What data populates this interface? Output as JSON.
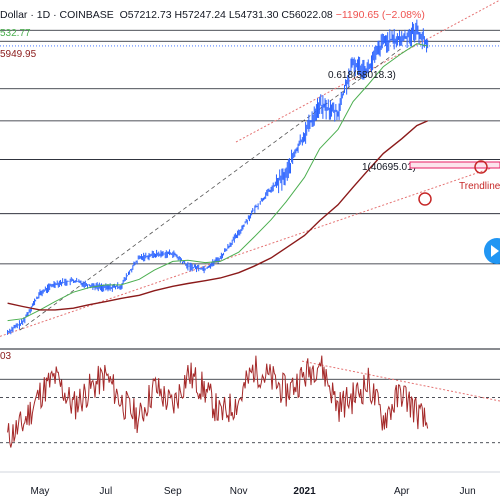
{
  "header": {
    "title": "Dollar · 1D · COINBASE",
    "open": "O57212.73",
    "high": "H57247.24",
    "low": "L54731.30",
    "close": "C56022.08",
    "change": "−1190.65 (−2.08%)"
  },
  "ma_labels": {
    "fast": "532.77",
    "slow": "5949.95"
  },
  "rsi_label": "03",
  "annotations": {
    "fib_618": "0.618(58018.3)",
    "fib_1": "1(40695.01)",
    "trendline": "Trendline"
  },
  "colors": {
    "up": "#2962ff",
    "ma_fast": "#4caf50",
    "ma_slow": "#8b1a1a",
    "rsi": "#a52a2a",
    "trend": "#e57373",
    "fib": "#131722"
  },
  "chart_data": [
    {
      "type": "line",
      "title": "",
      "x": [
        "2020-04-01",
        "2020-04-15",
        "2020-05-01",
        "2020-05-15",
        "2020-06-01",
        "2020-06-15",
        "2020-07-01",
        "2020-07-15",
        "2020-08-01",
        "2020-08-15",
        "2020-09-01",
        "2020-09-15",
        "2020-10-01",
        "2020-10-15",
        "2020-11-01",
        "2020-11-15",
        "2020-12-01",
        "2020-12-15",
        "2021-01-01",
        "2021-01-15",
        "2021-02-01",
        "2021-02-15",
        "2021-03-01",
        "2021-03-15",
        "2021-04-01",
        "2021-04-15",
        "2021-04-25"
      ],
      "series": [
        {
          "values": [
            6600,
            7100,
            8800,
            9500,
            9700,
            9400,
            9200,
            9300,
            11500,
            11800,
            11900,
            10800,
            10600,
            11500,
            13800,
            16400,
            19200,
            21500,
            29000,
            36000,
            34000,
            49000,
            47000,
            58000,
            59000,
            63000,
            56022
          ]
        },
        {
          "values": [
            7200,
            7300,
            7800,
            8300,
            8900,
            9200,
            9400,
            9400,
            9800,
            10500,
            11200,
            11300,
            11100,
            11200,
            12000,
            13400,
            15300,
            17500,
            21000,
            26000,
            30000,
            37000,
            42000,
            48000,
            53000,
            57000,
            56000
          ]
        },
        {
          "values": [
            8200,
            8000,
            7800,
            7800,
            7900,
            8100,
            8300,
            8500,
            8700,
            9000,
            9300,
            9500,
            9700,
            9900,
            10300,
            10800,
            11500,
            12400,
            13600,
            15200,
            17100,
            19500,
            22200,
            25100,
            28000,
            30900,
            32000
          ]
        }
      ],
      "xtick_labels": [
        "May",
        "Jul",
        "Sep",
        "Nov",
        "2021",
        "Apr",
        "Jun"
      ],
      "hlines": [
        58018.3,
        40695.01
      ]
    },
    {
      "type": "line",
      "title": "",
      "series": [
        {
          "values": [
            38,
            45,
            62,
            71,
            55,
            64,
            72,
            58,
            48,
            66,
            55,
            73,
            64,
            50,
            58,
            76,
            70,
            63,
            72,
            80,
            55,
            60,
            68,
            48,
            63,
            52,
            44
          ]
        }
      ],
      "hlines": [
        70,
        50,
        30
      ]
    }
  ]
}
